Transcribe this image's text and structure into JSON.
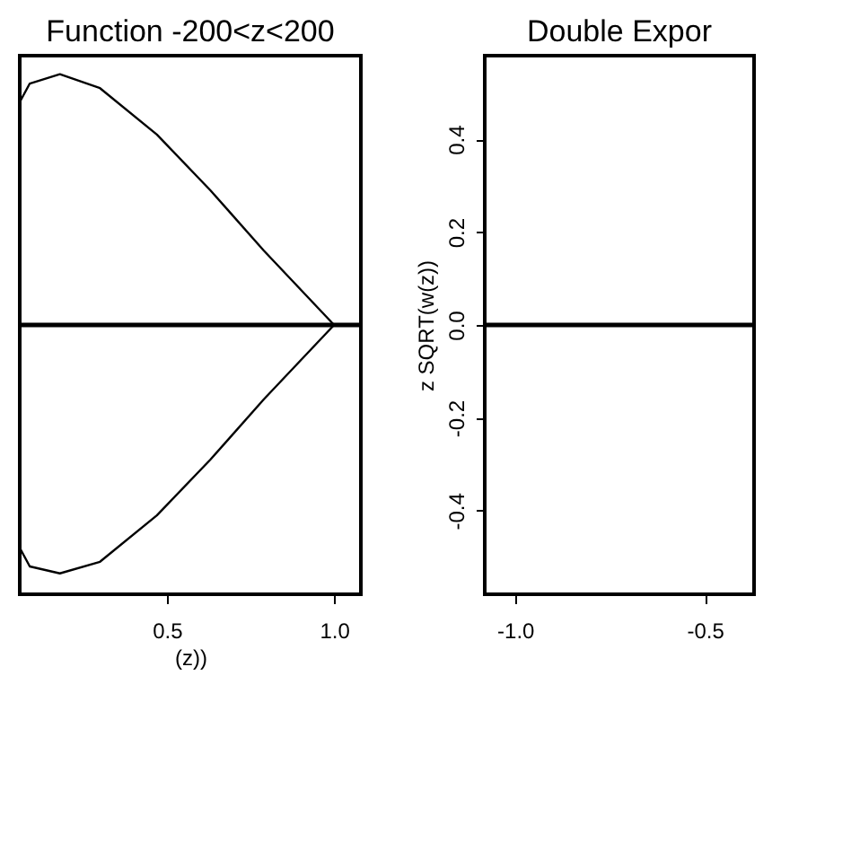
{
  "chart_data": [
    {
      "type": "line",
      "title": "Function -200<z<200",
      "xlabel": "(z))",
      "xlim": [
        0.06,
        1.08
      ],
      "ylim": [
        -0.58,
        0.58
      ],
      "xticks": [
        0.5,
        {
          "value": 1.0,
          "label": "1.0"
        }
      ],
      "tick_labels": "x",
      "grid": false,
      "series": [
        {
          "color": "#000000",
          "x": [
            0.06,
            0.09,
            0.18,
            0.3,
            0.47,
            0.63,
            0.79,
            1.0,
            0.79,
            0.63,
            0.47,
            0.3,
            0.18,
            0.09,
            0.06
          ],
          "values": [
            0.48,
            0.52,
            0.54,
            0.51,
            0.41,
            0.29,
            0.16,
            0,
            -0.16,
            -0.29,
            -0.41,
            -0.51,
            -0.535,
            -0.52,
            -0.48
          ]
        }
      ],
      "ref_lines": [
        {
          "axis": "y",
          "value": 0,
          "color": "#000000"
        }
      ]
    },
    {
      "type": "line",
      "title": "Double Expor",
      "ylabel": "z SQRT(w(z))",
      "xlim": [
        -1.08,
        -0.37
      ],
      "ylim": [
        -0.58,
        0.58
      ],
      "xticks": [
        {
          "value": -1.0,
          "label": "-1.0"
        },
        -0.5
      ],
      "yticks": [
        -0.4,
        -0.2,
        {
          "value": 0,
          "label": "0.0"
        },
        0.2,
        0.4
      ],
      "grid": false,
      "ref_lines": [
        {
          "axis": "y",
          "value": 0,
          "color": "#000000"
        }
      ]
    }
  ]
}
